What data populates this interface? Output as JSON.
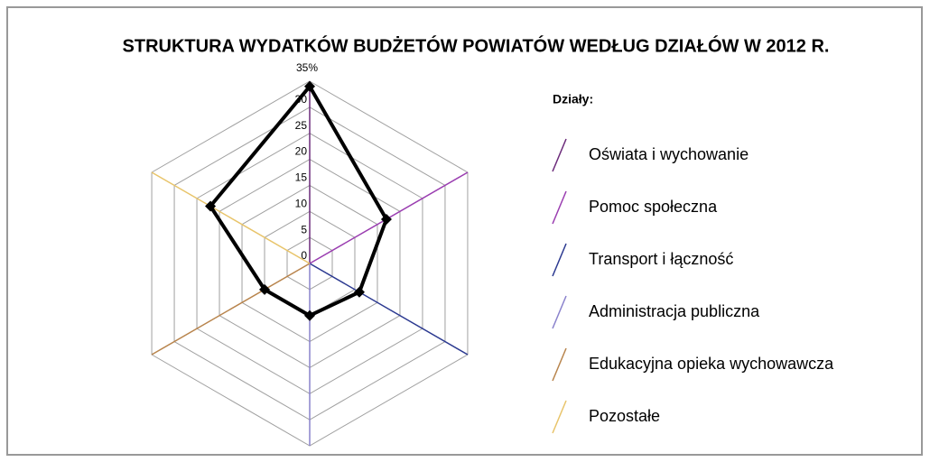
{
  "chart_data": {
    "type": "radar",
    "title": "STRUKTURA  WYDATKÓW  BUDŻETÓW  POWIATÓW  WEDŁUG  DZIAŁÓW  W  2012  R.",
    "legend_title": "Działy:",
    "categories": [
      "Oświata i wychowanie",
      "Pomoc społeczna",
      "Transport i łączność",
      "Administracja publiczna",
      "Edukacyjna opieka wychowawcza",
      "Pozostałe"
    ],
    "category_colors": [
      "#6b2a7a",
      "#9a3db0",
      "#2b3990",
      "#8a82cc",
      "#b8844c",
      "#e8c46a"
    ],
    "values": [
      34,
      17,
      11,
      10,
      10,
      22
    ],
    "color": "#000000",
    "rlim": [
      0,
      35
    ],
    "rticks": [
      0,
      5,
      10,
      15,
      20,
      25,
      30,
      {
        "value": 35,
        "label": "35%"
      }
    ],
    "grid": true,
    "legend": "right"
  }
}
